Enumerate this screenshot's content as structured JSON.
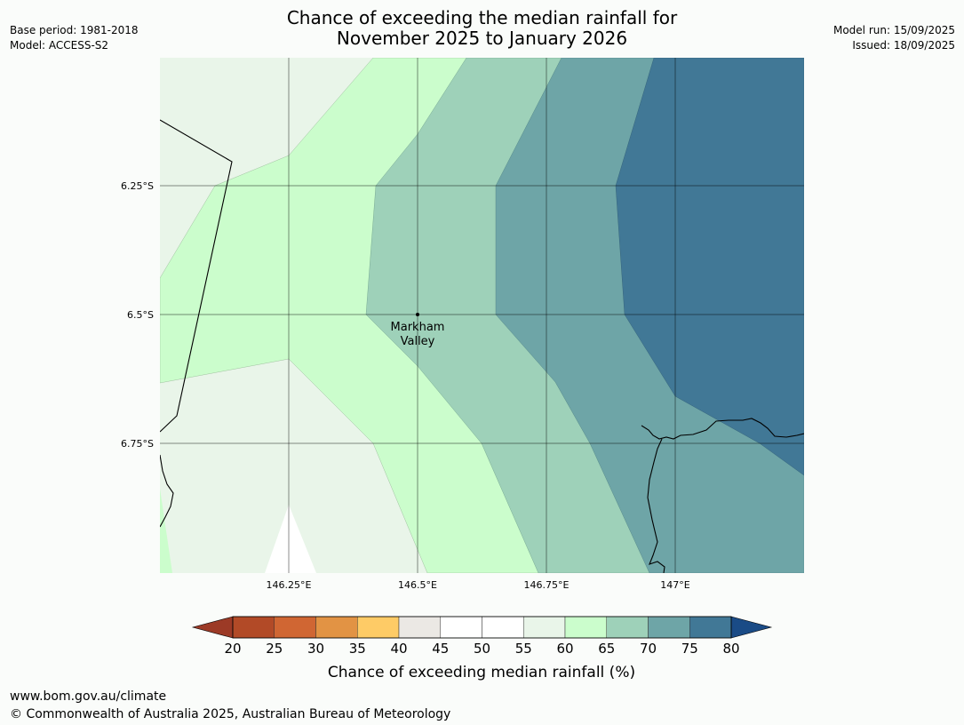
{
  "header": {
    "title_line1": "Chance of exceeding the median rainfall for",
    "title_line2": "November 2025 to January 2026",
    "base_period": "Base period: 1981-2018",
    "model": "Model: ACCESS-S2",
    "model_run": "Model run: 15/09/2025",
    "issued": "Issued: 18/09/2025"
  },
  "map": {
    "lat_labels": [
      "6.25°S",
      "6.5°S",
      "6.75°S"
    ],
    "lon_labels": [
      "146.25°E",
      "146.5°E",
      "146.75°E",
      "147°E"
    ],
    "place": {
      "name_line1": "Markham",
      "name_line2": "Valley",
      "lon": 146.5,
      "lat": -6.5
    }
  },
  "legend": {
    "title": "Chance of exceeding median rainfall (%)",
    "ticks": [
      "20",
      "25",
      "30",
      "35",
      "40",
      "45",
      "50",
      "55",
      "60",
      "65",
      "70",
      "75",
      "80"
    ],
    "bins": [
      {
        "range": "20-25",
        "color": "#b24a27"
      },
      {
        "range": "25-30",
        "color": "#d06633"
      },
      {
        "range": "30-35",
        "color": "#e29344"
      },
      {
        "range": "35-40",
        "color": "#fecb66"
      },
      {
        "range": "40-45",
        "color": "#ebe8e4"
      },
      {
        "range": "45-50",
        "color": "#ffffff"
      },
      {
        "range": "50-55",
        "color": "#ffffff"
      },
      {
        "range": "55-60",
        "color": "#e9f5e9"
      },
      {
        "range": "60-65",
        "color": "#cbfdcc"
      },
      {
        "range": "65-70",
        "color": "#9ed1b9"
      },
      {
        "range": "70-75",
        "color": "#6ea5a7"
      },
      {
        "range": "75-80",
        "color": "#417896"
      }
    ],
    "under_color": "#9c3a26",
    "over_color": "#1a4b86"
  },
  "footer": {
    "url": "www.bom.gov.au/climate",
    "copyright": "© Commonwealth of Australia 2025, Australian Bureau of Meteorology"
  }
}
